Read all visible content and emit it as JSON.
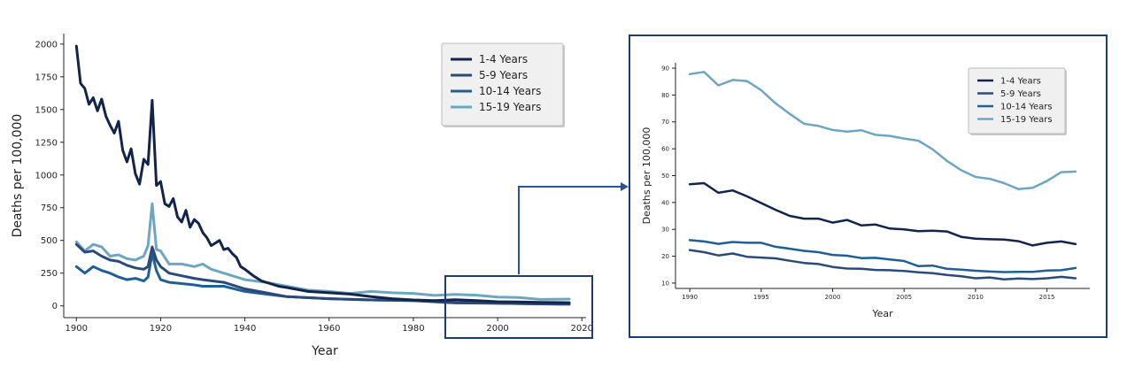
{
  "colors": {
    "series": [
      "#12244a",
      "#2b4a78",
      "#1f5f95",
      "#6ea6c0"
    ],
    "frame": "#1f3c6e",
    "axis": "#222222"
  },
  "chart_data": [
    {
      "type": "line",
      "title": "",
      "xlabel": "Year",
      "ylabel": "Deaths per 100,000",
      "xlim": [
        1897,
        2021
      ],
      "ylim": [
        -90,
        2080
      ],
      "xticks": [
        1900,
        1920,
        1940,
        1960,
        1980,
        2000,
        2020
      ],
      "yticks": [
        0,
        250,
        500,
        750,
        1000,
        1250,
        1500,
        1750,
        2000
      ],
      "legend_position": "top-right",
      "grid": false,
      "series": [
        {
          "name": "1-4 Years",
          "x": [
            1900,
            1901,
            1902,
            1903,
            1904,
            1905,
            1906,
            1907,
            1908,
            1909,
            1910,
            1911,
            1912,
            1913,
            1914,
            1915,
            1916,
            1917,
            1918,
            1919,
            1920,
            1921,
            1922,
            1923,
            1924,
            1925,
            1926,
            1927,
            1928,
            1929,
            1930,
            1931,
            1932,
            1933,
            1934,
            1935,
            1936,
            1937,
            1938,
            1939,
            1940,
            1942,
            1944,
            1946,
            1948,
            1950,
            1955,
            1960,
            1965,
            1970,
            1975,
            1980,
            1985,
            1990,
            1995,
            2000,
            2005,
            2010,
            2017
          ],
          "values": [
            1985,
            1700,
            1660,
            1540,
            1590,
            1490,
            1580,
            1450,
            1380,
            1320,
            1410,
            1190,
            1100,
            1200,
            1010,
            930,
            1120,
            1080,
            1570,
            920,
            950,
            780,
            760,
            820,
            680,
            640,
            730,
            600,
            660,
            630,
            560,
            520,
            460,
            480,
            500,
            430,
            440,
            400,
            370,
            300,
            280,
            230,
            190,
            170,
            150,
            140,
            110,
            100,
            90,
            70,
            55,
            45,
            40,
            47,
            40,
            32,
            30,
            27,
            24
          ]
        },
        {
          "name": "5-9 Years",
          "x": [
            1900,
            1902,
            1904,
            1906,
            1908,
            1910,
            1912,
            1914,
            1916,
            1917,
            1918,
            1919,
            1920,
            1922,
            1925,
            1928,
            1930,
            1935,
            1940,
            1945,
            1950,
            1960,
            1970,
            1980,
            1990,
            2000,
            2010,
            2017
          ],
          "values": [
            470,
            410,
            420,
            380,
            350,
            340,
            310,
            290,
            280,
            300,
            450,
            350,
            300,
            250,
            230,
            210,
            200,
            180,
            130,
            100,
            70,
            55,
            45,
            40,
            22,
            20,
            15,
            12
          ]
        },
        {
          "name": "10-14 Years",
          "x": [
            1900,
            1902,
            1904,
            1906,
            1908,
            1910,
            1912,
            1914,
            1916,
            1917,
            1918,
            1919,
            1920,
            1922,
            1925,
            1928,
            1930,
            1935,
            1940,
            1945,
            1950,
            1960,
            1970,
            1980,
            1990,
            2000,
            2010,
            2017
          ],
          "values": [
            300,
            250,
            300,
            270,
            250,
            220,
            200,
            210,
            190,
            220,
            400,
            270,
            200,
            180,
            170,
            160,
            150,
            150,
            110,
            90,
            70,
            55,
            45,
            40,
            26,
            20,
            15,
            15
          ]
        },
        {
          "name": "15-19 Years",
          "x": [
            1900,
            1902,
            1904,
            1906,
            1908,
            1910,
            1912,
            1914,
            1916,
            1917,
            1918,
            1919,
            1920,
            1922,
            1925,
            1928,
            1930,
            1932,
            1935,
            1940,
            1945,
            1950,
            1955,
            1960,
            1965,
            1970,
            1975,
            1980,
            1985,
            1990,
            1995,
            2000,
            2005,
            2010,
            2017
          ],
          "values": [
            490,
            420,
            470,
            450,
            380,
            390,
            360,
            350,
            380,
            460,
            780,
            430,
            420,
            320,
            320,
            300,
            320,
            280,
            250,
            200,
            180,
            150,
            120,
            110,
            95,
            110,
            100,
            95,
            80,
            88,
            82,
            67,
            64,
            49,
            52
          ]
        }
      ]
    },
    {
      "type": "line",
      "title": "",
      "xlabel": "Year",
      "ylabel": "Deaths per 100,000",
      "xlim": [
        1989,
        2018
      ],
      "ylim": [
        8,
        92
      ],
      "xticks": [
        1990,
        1995,
        2000,
        2005,
        2010,
        2015
      ],
      "yticks": [
        10,
        20,
        30,
        40,
        50,
        60,
        70,
        80,
        90
      ],
      "legend_position": "top-right",
      "grid": false,
      "series": [
        {
          "name": "1-4 Years",
          "x": [
            1990,
            1991,
            1992,
            1993,
            1994,
            1995,
            1996,
            1997,
            1998,
            1999,
            2000,
            2001,
            2002,
            2003,
            2004,
            2005,
            2006,
            2007,
            2008,
            2009,
            2010,
            2011,
            2012,
            2013,
            2014,
            2015,
            2016,
            2017
          ],
          "values": [
            46.8,
            47.2,
            43.6,
            44.5,
            42.3,
            39.8,
            37.3,
            35.0,
            34.0,
            34.0,
            32.5,
            33.5,
            31.5,
            31.8,
            30.3,
            30.0,
            29.3,
            29.5,
            29.2,
            27.2,
            26.5,
            26.3,
            26.2,
            25.6,
            24.0,
            25.0,
            25.5,
            24.5
          ]
        },
        {
          "name": "5-9 Years",
          "x": [
            1990,
            1991,
            1992,
            1993,
            1994,
            1995,
            1996,
            1997,
            1998,
            1999,
            2000,
            2001,
            2002,
            2003,
            2004,
            2005,
            2006,
            2007,
            2008,
            2009,
            2010,
            2011,
            2012,
            2013,
            2014,
            2015,
            2016,
            2017
          ],
          "values": [
            22.3,
            21.5,
            20.3,
            21.0,
            19.8,
            19.5,
            19.2,
            18.3,
            17.5,
            17.1,
            16.0,
            15.4,
            15.3,
            14.9,
            14.8,
            14.5,
            14.0,
            13.7,
            13.0,
            12.5,
            11.8,
            12.1,
            11.4,
            11.7,
            11.5,
            11.8,
            12.3,
            11.8
          ]
        },
        {
          "name": "10-14 Years",
          "x": [
            1990,
            1991,
            1992,
            1993,
            1994,
            1995,
            1996,
            1997,
            1998,
            1999,
            2000,
            2001,
            2002,
            2003,
            2004,
            2005,
            2006,
            2007,
            2008,
            2009,
            2010,
            2011,
            2012,
            2013,
            2014,
            2015,
            2016,
            2017
          ],
          "values": [
            26.0,
            25.5,
            24.6,
            25.3,
            25.0,
            25.0,
            23.5,
            22.8,
            22.0,
            21.5,
            20.5,
            20.2,
            19.3,
            19.4,
            18.8,
            18.2,
            16.3,
            16.5,
            15.3,
            15.0,
            14.6,
            14.3,
            14.1,
            14.2,
            14.2,
            14.7,
            14.8,
            15.6
          ]
        },
        {
          "name": "15-19 Years",
          "x": [
            1990,
            1991,
            1992,
            1993,
            1994,
            1995,
            1996,
            1997,
            1998,
            1999,
            2000,
            2001,
            2002,
            2003,
            2004,
            2005,
            2006,
            2007,
            2008,
            2009,
            2010,
            2011,
            2012,
            2013,
            2014,
            2015,
            2016,
            2017
          ],
          "values": [
            87.8,
            88.6,
            83.6,
            85.6,
            85.2,
            81.8,
            76.9,
            73.0,
            69.3,
            68.5,
            67.0,
            66.4,
            66.9,
            65.2,
            64.8,
            63.8,
            63.0,
            59.8,
            55.5,
            52.0,
            49.5,
            48.8,
            47.2,
            45.0,
            45.5,
            48.0,
            51.3,
            51.5
          ]
        }
      ]
    }
  ]
}
